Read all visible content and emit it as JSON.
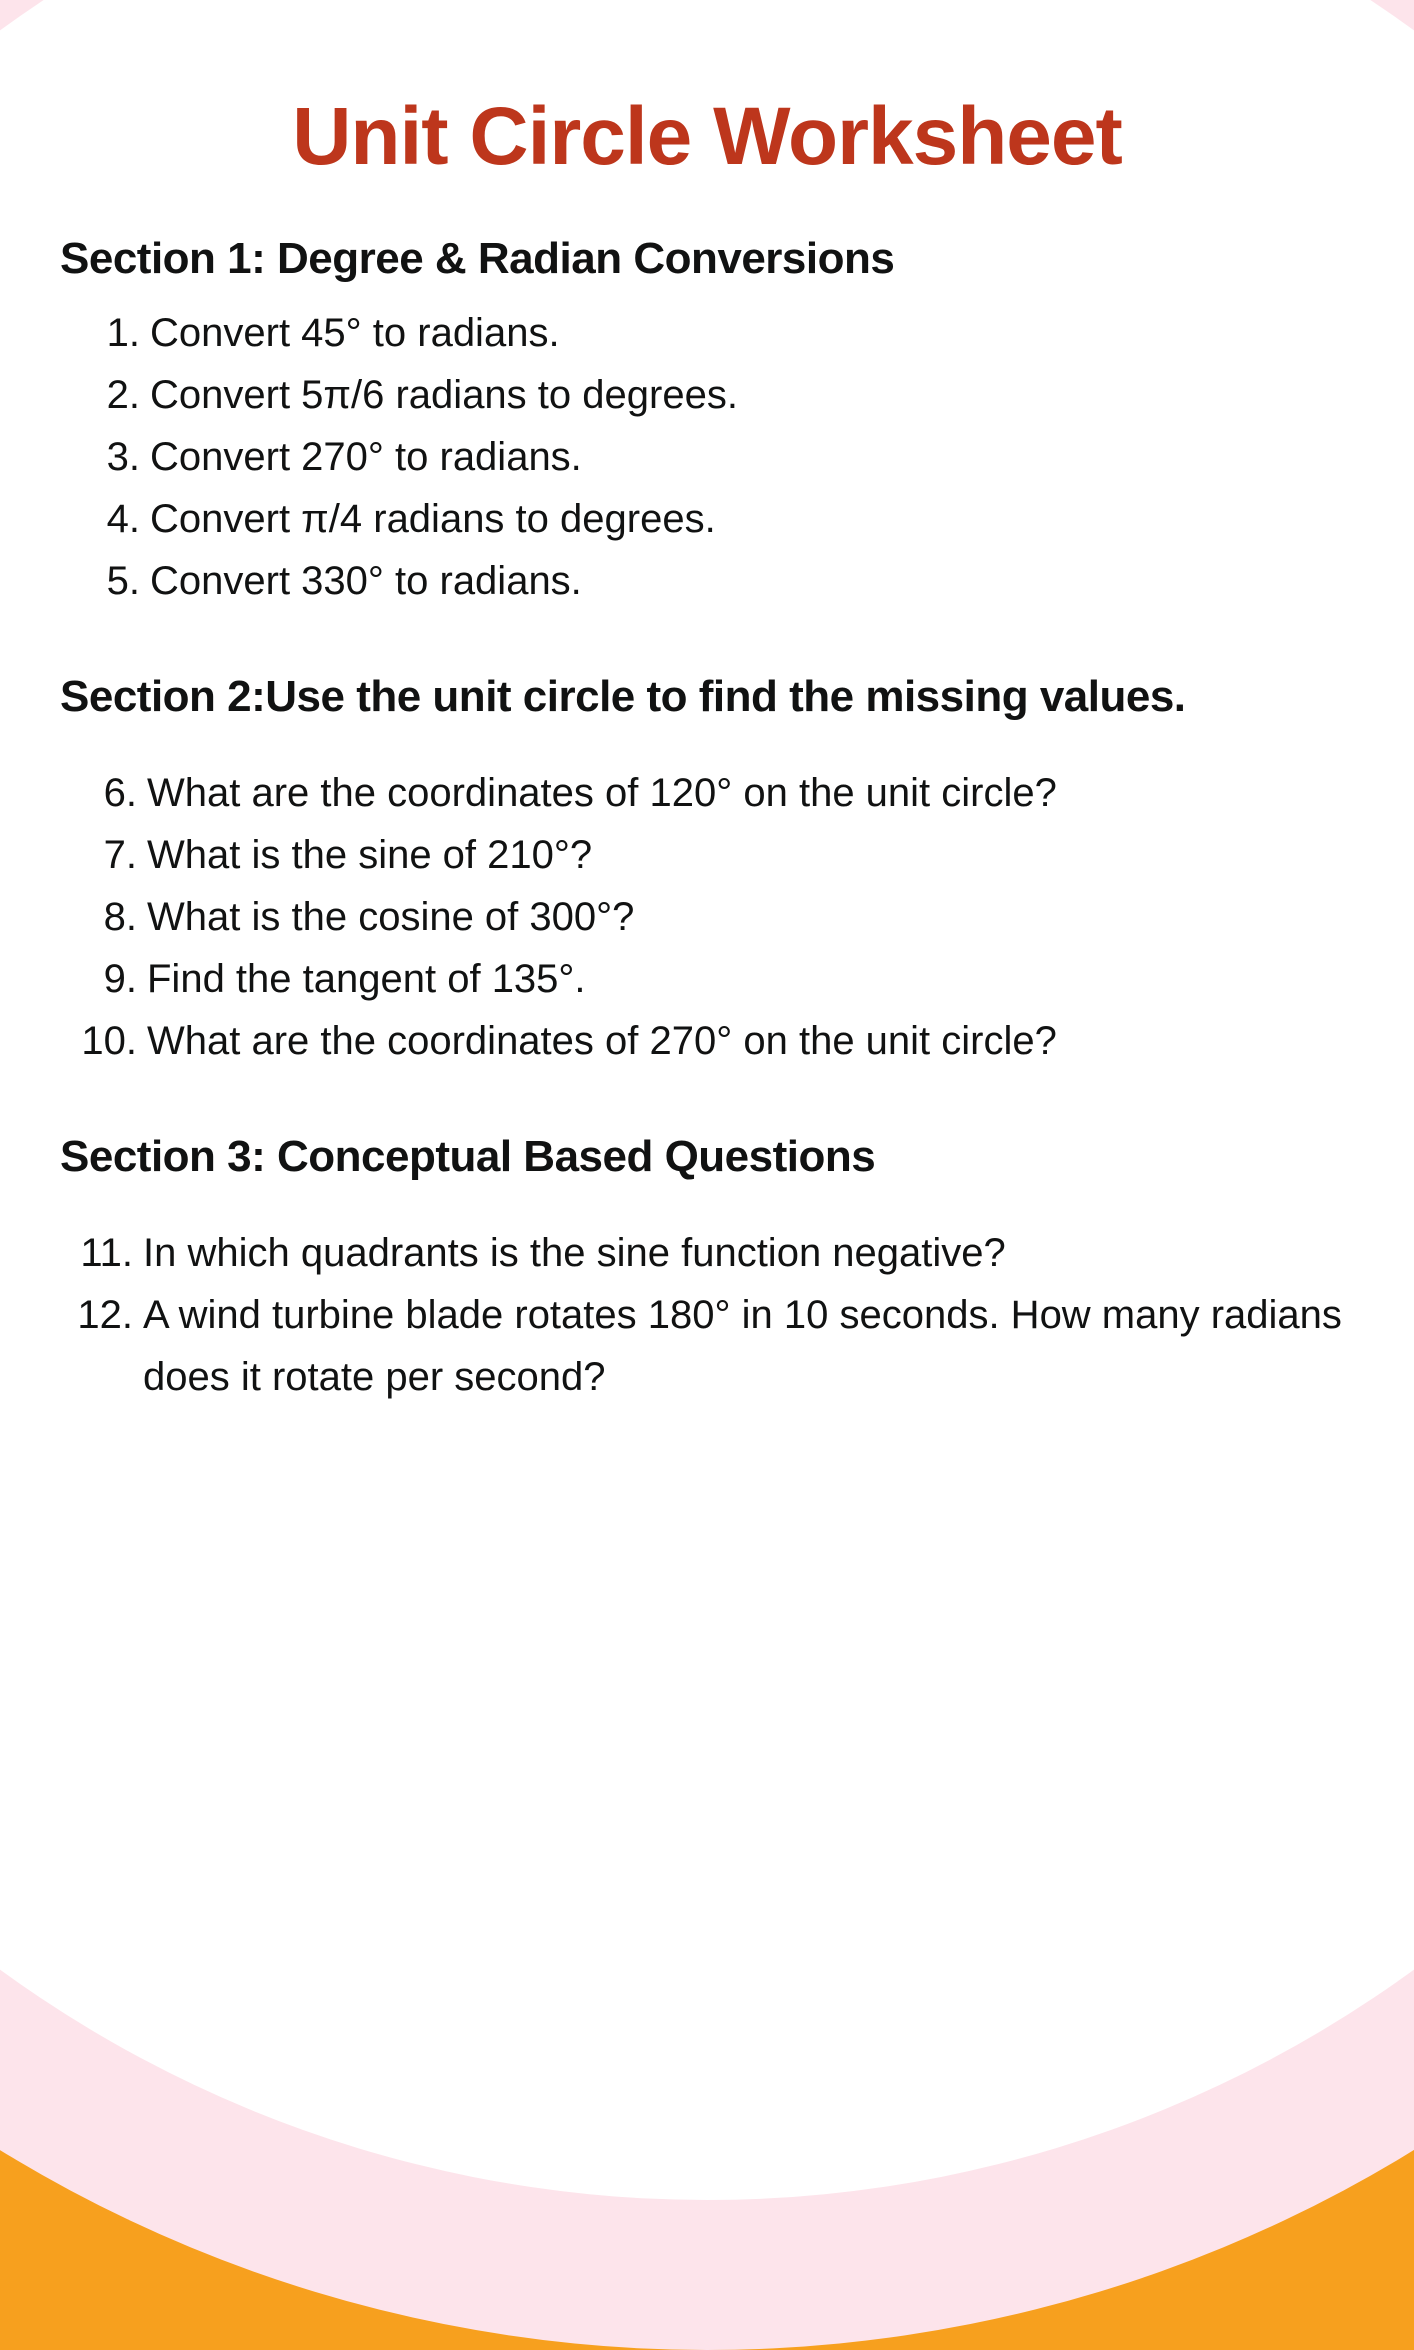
{
  "title": "Unit Circle Worksheet",
  "colors": {
    "orange_bg": "#f7a01e",
    "pink_circle": "#fde4eb",
    "white_circle": "#ffffff",
    "title_color": "#bd361c",
    "text_color": "#111212"
  },
  "typography": {
    "title_fontsize": 82,
    "heading_fontsize": 44,
    "body_fontsize": 40
  },
  "sections": [
    {
      "heading": "Section 1: Degree & Radian Conversions",
      "questions": [
        {
          "num": "1.",
          "text": "Convert 45° to radians."
        },
        {
          "num": "2.",
          "text": "Convert 5π/6 radians to degrees."
        },
        {
          "num": "3.",
          "text": "Convert 270° to radians."
        },
        {
          "num": "4.",
          "text": "Convert π/4 radians to degrees."
        },
        {
          "num": "5.",
          "text": "Convert 330° to radians."
        }
      ]
    },
    {
      "heading": "Section 2:Use the unit circle to find the missing values.",
      "questions": [
        {
          "num": "6.",
          "text": "What are the coordinates of 120° on the unit circle?"
        },
        {
          "num": "7.",
          "text": "What is the sine of 210°?"
        },
        {
          "num": "8.",
          "text": "What is the cosine of 300°?"
        },
        {
          "num": "9.",
          "text": "Find the tangent of 135°."
        },
        {
          "num": "10.",
          "text": "What are the coordinates of 270° on the unit circle?"
        }
      ]
    },
    {
      "heading": "Section 3: Conceptual Based Questions",
      "questions": [
        {
          "num": "11.",
          "text": "In which quadrants is the sine function negative?"
        },
        {
          "num": "12.",
          "text": "A wind turbine blade rotates 180° in 10 seconds. How many radians does it rotate per second?"
        }
      ]
    }
  ]
}
